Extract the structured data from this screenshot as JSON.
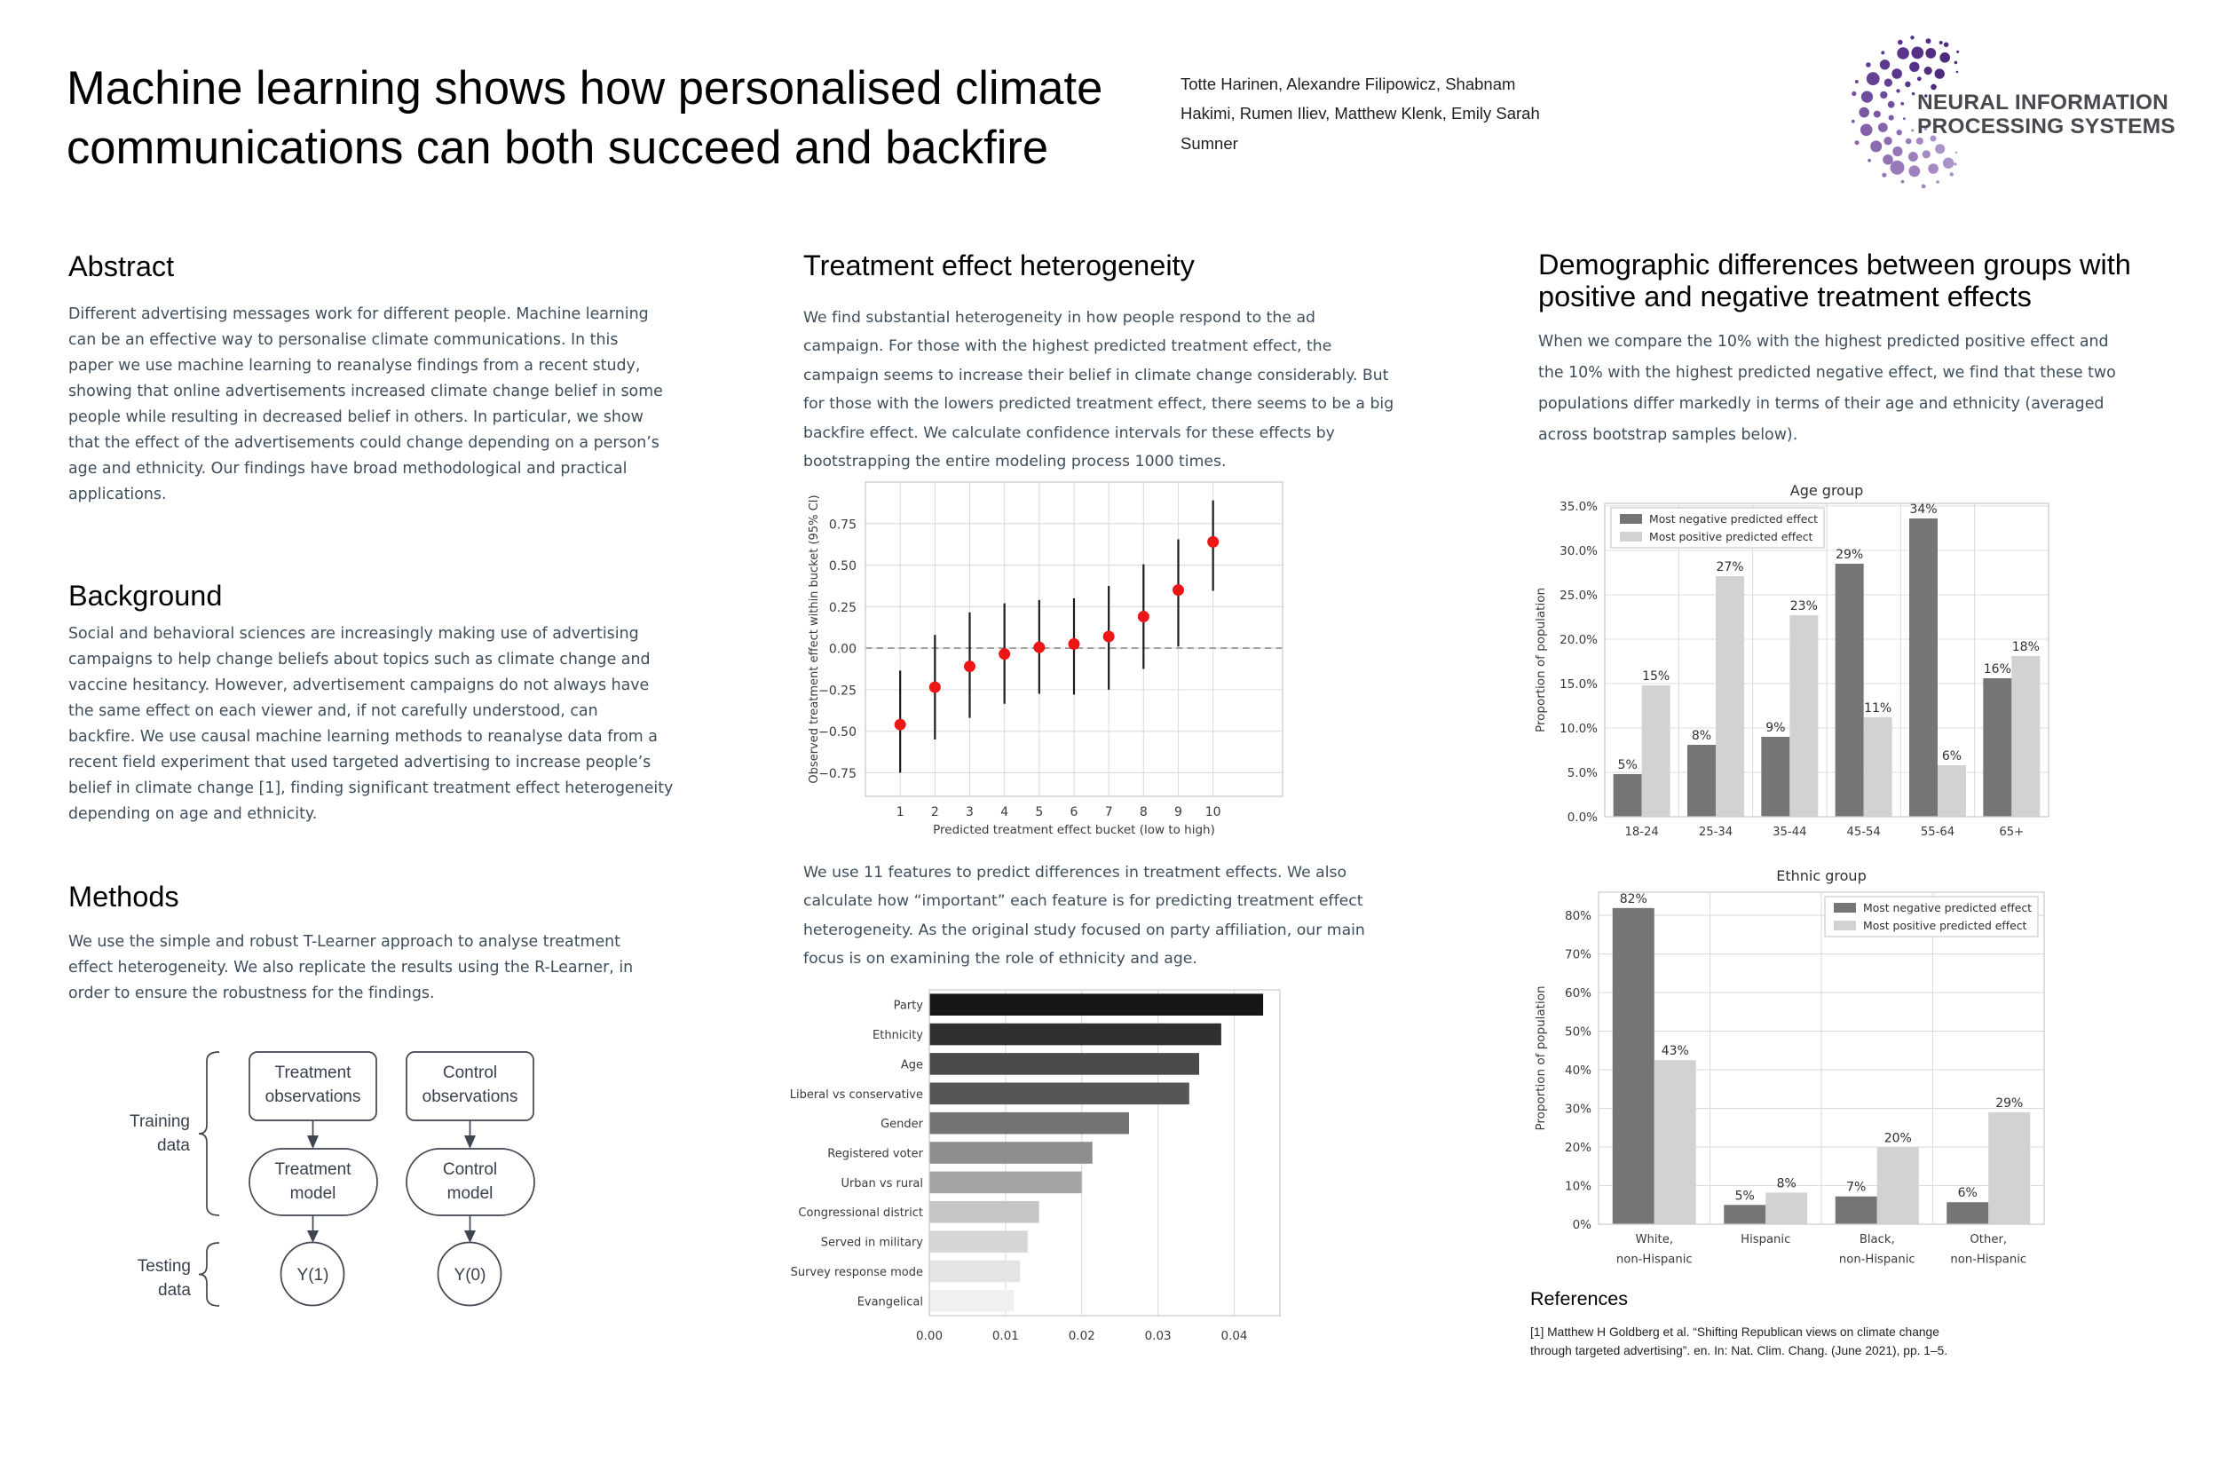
{
  "poster": {
    "title_lines": [
      "Machine learning shows how personalised climate",
      "communications can both succeed and backfire"
    ],
    "authors_lines": [
      "Totte Harinen, Alexandre Filipowicz, Shabnam",
      "Hakimi, Rumen Iliev, Matthew Klenk, Emily Sarah",
      "Sumner"
    ],
    "logo": {
      "line1": "NEURAL INFORMATION",
      "line2": "PROCESSING SYSTEMS"
    },
    "abstract": {
      "heading": "Abstract",
      "lines": [
        "Different advertising messages work for different people. Machine learning",
        "can be an effective way to personalise climate communications. In this",
        "paper we use machine learning to reanalyse findings from a recent study,",
        "showing that online advertisements increased climate change belief in some",
        "people while resulting in decreased belief in others. In particular, we show",
        "that the effect of the advertisements could change depending on a person’s",
        "age and ethnicity. Our findings have broad methodological and practical",
        "applications."
      ]
    },
    "background": {
      "heading": "Background",
      "lines": [
        "Social and behavioral sciences are increasingly making use of advertising",
        "campaigns to help change beliefs about topics such as climate change and",
        "vaccine hesitancy. However, advertisement campaigns do not always have",
        "the same effect on each viewer and, if not carefully understood, can",
        "backfire. We use causal machine learning methods to reanalyse data from a",
        "recent field experiment that used targeted advertising to increase people’s",
        "belief in climate change [1], finding significant treatment effect heterogeneity",
        "depending on age and ethnicity."
      ]
    },
    "methods": {
      "heading": "Methods",
      "lines": [
        "We use the simple and robust T-Learner approach to analyse treatment",
        "effect heterogeneity. We also replicate the results using the R-Learner, in",
        "order to ensure the robustness for the findings."
      ]
    },
    "treatment": {
      "heading": "Treatment effect heterogeneity",
      "para1_lines": [
        "We find substantial heterogeneity in how people respond to the ad",
        "campaign. For those with the highest predicted treatment effect, the",
        "campaign seems to increase their belief in climate change considerably. But",
        "for those with the lowers predicted treatment effect, there seems to be a big",
        "backfire effect. We calculate confidence intervals for these effects by",
        "bootstrapping the entire modeling process 1000 times."
      ],
      "para2_lines": [
        "We use 11 features to predict differences in treatment effects. We also",
        "calculate how “important” each feature is for predicting treatment effect",
        "heterogeneity. As the original study focused on party affiliation, our main",
        "focus is on examining the role of ethnicity and age."
      ]
    },
    "demographics": {
      "heading_lines": [
        "Demographic differences between groups with",
        "positive and negative treatment effects"
      ],
      "para_lines": [
        "When we compare the 10% with the highest predicted positive effect and",
        "the 10% with the highest predicted negative effect, we find that these two",
        "populations differ markedly in terms of their age and ethnicity (averaged",
        "across bootstrap samples below)."
      ]
    },
    "references": {
      "heading": "References",
      "lines": [
        "[1] Matthew H Goldberg et al. “Shifting Republican views on climate change",
        "through targeted advertising”. en. In: Nat. Clim. Chang. (June 2021), pp. 1–5."
      ]
    },
    "diagram": {
      "training_lines": [
        "Training",
        "data"
      ],
      "testing_lines": [
        "Testing",
        "data"
      ],
      "t_obs": [
        "Treatment",
        "observations"
      ],
      "c_obs": [
        "Control",
        "observations"
      ],
      "t_model": [
        "Treatment",
        "model"
      ],
      "c_model": [
        "Control",
        "model"
      ],
      "y1": "Y(1)",
      "y0": "Y(0)"
    }
  },
  "chart_data": [
    {
      "type": "scatter",
      "subtype": "errorbar",
      "title": "",
      "xlabel": "Predicted treatment effect bucket (low to high)",
      "ylabel": "Observed treatment effect within bucket (95% CI)",
      "x": [
        1,
        2,
        3,
        4,
        5,
        6,
        7,
        8,
        9,
        10
      ],
      "y": [
        -0.46,
        -0.235,
        -0.11,
        -0.035,
        0.005,
        0.025,
        0.07,
        0.19,
        0.35,
        0.64
      ],
      "ci_low": [
        -0.75,
        -0.55,
        -0.42,
        -0.335,
        -0.275,
        -0.28,
        -0.25,
        -0.125,
        0.01,
        0.345
      ],
      "ci_high": [
        -0.135,
        0.08,
        0.215,
        0.27,
        0.29,
        0.3,
        0.375,
        0.505,
        0.655,
        0.89
      ],
      "xlim": [
        0,
        12
      ],
      "ylim": [
        -0.892,
        1.0
      ],
      "yticks": {
        "values": [
          -0.75,
          -0.5,
          -0.25,
          0,
          0.25,
          0.5,
          0.75
        ],
        "labels": [
          "−0.75",
          "−0.50",
          "−0.25",
          "0.00",
          "0.25",
          "0.50",
          "0.75"
        ]
      },
      "xticks": {
        "values": [
          1,
          2,
          3,
          4,
          5,
          6,
          7,
          8,
          9,
          10
        ],
        "labels": [
          "1",
          "2",
          "3",
          "4",
          "5",
          "6",
          "7",
          "8",
          "9",
          "10"
        ]
      },
      "zero_line": true,
      "grid": true,
      "point_color": "#ee1515",
      "bar_color": "#1c1c1c"
    },
    {
      "type": "bar",
      "subtype": "horizontal",
      "title": "",
      "categories": [
        "Party",
        "Ethnicity",
        "Age",
        "Liberal vs conservative",
        "Gender",
        "Registered voter",
        "Urban vs rural",
        "Congressional district",
        "Served in military",
        "Survey response mode",
        "Evangelical"
      ],
      "values": [
        0.0438,
        0.0383,
        0.0354,
        0.0341,
        0.0262,
        0.0214,
        0.02,
        0.0144,
        0.0129,
        0.0119,
        0.0111
      ],
      "colors": [
        "#161616",
        "#303030",
        "#4b4b4b",
        "#565656",
        "#737373",
        "#8e8e8e",
        "#a4a4a4",
        "#c5c5c5",
        "#d6d6d6",
        "#e4e4e4",
        "#f0f0f0"
      ],
      "xlim": [
        0,
        0.046
      ],
      "xticks": {
        "values": [
          0,
          0.01,
          0.02,
          0.03,
          0.04
        ],
        "labels": [
          "0.00",
          "0.01",
          "0.02",
          "0.03",
          "0.04"
        ]
      },
      "grid": true
    },
    {
      "type": "bar",
      "subtype": "grouped",
      "title": "Age group",
      "ylabel": "Proportion of population",
      "categories": [
        "18-24",
        "25-34",
        "35-44",
        "45-54",
        "55-64",
        "65+"
      ],
      "series": [
        {
          "name": "Most negative predicted effect",
          "values": [
            4.8,
            8.1,
            9.0,
            28.5,
            33.6,
            15.6
          ],
          "labels": [
            "5%",
            "8%",
            "9%",
            "29%",
            "34%",
            "16%"
          ],
          "color": "#757575"
        },
        {
          "name": "Most positive predicted effect",
          "values": [
            14.8,
            27.1,
            22.7,
            11.2,
            5.8,
            18.1
          ],
          "labels": [
            "15%",
            "27%",
            "23%",
            "11%",
            "6%",
            "18%"
          ],
          "color": "#d2d2d2"
        }
      ],
      "ylim": [
        0,
        35.3
      ],
      "yticks": {
        "values": [
          0,
          5,
          10,
          15,
          20,
          25,
          30,
          35
        ],
        "labels": [
          "0.0%",
          "5.0%",
          "10.0%",
          "15.0%",
          "20.0%",
          "25.0%",
          "30.0%",
          "35.0%"
        ]
      },
      "legend_pos": "left",
      "grid": true
    },
    {
      "type": "bar",
      "subtype": "grouped",
      "title": "Ethnic group",
      "ylabel": "Proportion of population",
      "categories": [
        "White,\nnon-Hispanic",
        "Hispanic",
        "Black,\nnon-Hispanic",
        "Other,\nnon-Hispanic"
      ],
      "series": [
        {
          "name": "Most negative predicted effect",
          "values": [
            81.9,
            5.0,
            7.2,
            5.7
          ],
          "labels": [
            "82%",
            "5%",
            "7%",
            "6%"
          ],
          "color": "#757575"
        },
        {
          "name": "Most positive predicted effect",
          "values": [
            42.5,
            8.2,
            19.9,
            29.0
          ],
          "labels": [
            "43%",
            "8%",
            "20%",
            "29%"
          ],
          "color": "#d2d2d2"
        }
      ],
      "ylim": [
        0,
        86
      ],
      "yticks": {
        "values": [
          0,
          10,
          20,
          30,
          40,
          50,
          60,
          70,
          80
        ],
        "labels": [
          "0%",
          "10%",
          "20%",
          "30%",
          "40%",
          "50%",
          "60%",
          "70%",
          "80%"
        ]
      },
      "legend_pos": "right",
      "grid": true
    }
  ],
  "colors": {
    "page_bg": "#ffffff",
    "heading": "#000000",
    "body_text": "#3e4e5c",
    "chart_text": "#3a3a3a",
    "grid_line": "#dcdcdc",
    "plot_border": "#c8cdd2",
    "diagram_stroke": "#3f4551",
    "neg_bar": "#757575",
    "pos_bar": "#d2d2d2",
    "point_red": "#ee1515",
    "logo_text": "#46464e",
    "logo_purple_dark": "#4c2a7d",
    "logo_purple_light": "#a98fc6"
  }
}
